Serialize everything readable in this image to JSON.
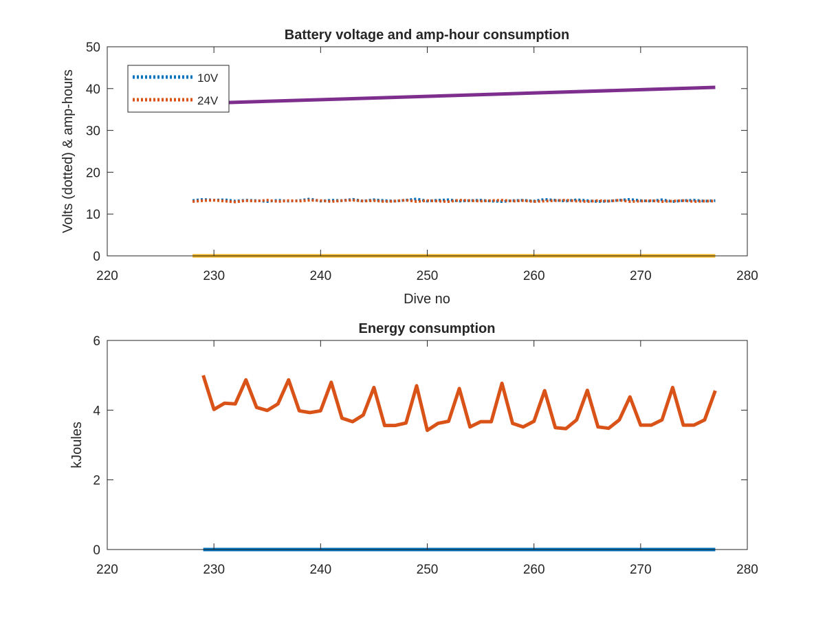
{
  "chart_data": [
    {
      "type": "line",
      "title": "Battery voltage and amp-hour consumption",
      "xlabel": "Dive no",
      "ylabel": "Volts (dotted) & amp-hours",
      "xlim": [
        220,
        280
      ],
      "ylim": [
        0,
        50
      ],
      "xticks": [
        "220",
        "230",
        "240",
        "250",
        "260",
        "270",
        "280"
      ],
      "yticks": [
        "0",
        "10",
        "20",
        "30",
        "40",
        "50"
      ],
      "legend_position": "top-left",
      "grid": false,
      "series": [
        {
          "name": "10V",
          "style": "dotted",
          "color": "#0072BD",
          "x": [
            228,
            229,
            230,
            231,
            232,
            233,
            234,
            235,
            236,
            237,
            238,
            239,
            240,
            241,
            242,
            243,
            244,
            245,
            246,
            247,
            248,
            249,
            250,
            251,
            252,
            253,
            254,
            255,
            256,
            257,
            258,
            259,
            260,
            261,
            262,
            263,
            264,
            265,
            266,
            267,
            268,
            269,
            270,
            271,
            272,
            273,
            274,
            275,
            276,
            277
          ],
          "y": [
            13.2,
            13.5,
            13.3,
            13.4,
            13.1,
            13.3,
            13.2,
            13.0,
            13.3,
            13.1,
            13.2,
            13.6,
            13.1,
            13.3,
            13.2,
            13.5,
            13.1,
            13.4,
            13.2,
            13.1,
            13.3,
            13.6,
            13.1,
            13.3,
            13.4,
            13.1,
            13.2,
            13.3,
            13.1,
            13.0,
            13.2,
            13.3,
            13.1,
            13.5,
            13.3,
            13.1,
            13.4,
            13.2,
            13.0,
            13.1,
            13.3,
            13.5,
            13.2,
            13.1,
            13.4,
            13.0,
            13.2,
            13.3,
            13.1,
            13.2
          ]
        },
        {
          "name": "24V",
          "style": "dotted",
          "color": "#D95319",
          "x": [
            228,
            229,
            230,
            231,
            232,
            233,
            234,
            235,
            236,
            237,
            238,
            239,
            240,
            241,
            242,
            243,
            244,
            245,
            246,
            247,
            248,
            249,
            250,
            251,
            252,
            253,
            254,
            255,
            256,
            257,
            258,
            259,
            260,
            261,
            262,
            263,
            264,
            265,
            266,
            267,
            268,
            269,
            270,
            271,
            272,
            273,
            274,
            275,
            276,
            277
          ],
          "y": [
            13.0,
            13.2,
            13.3,
            13.1,
            12.9,
            13.2,
            13.1,
            13.3,
            13.0,
            13.2,
            13.1,
            13.3,
            13.2,
            13.0,
            13.2,
            13.3,
            13.1,
            13.2,
            13.0,
            13.1,
            13.3,
            13.0,
            13.2,
            13.1,
            13.0,
            13.3,
            13.2,
            13.1,
            13.2,
            13.3,
            13.1,
            13.2,
            13.0,
            13.1,
            13.2,
            13.3,
            13.1,
            13.0,
            13.2,
            13.1,
            13.3,
            13.0,
            13.1,
            13.2,
            13.0,
            13.1,
            13.2,
            13.0,
            13.1,
            13.1
          ]
        },
        {
          "style": "solid",
          "color": "#7E2F8E",
          "x": [
            228,
            277
          ],
          "y": [
            36.4,
            40.3
          ]
        },
        {
          "style": "solid",
          "color": "#EDB120",
          "x": [
            228,
            277
          ],
          "y": [
            0,
            0
          ]
        }
      ]
    },
    {
      "type": "line",
      "title": "Energy consumption",
      "xlabel": "",
      "ylabel": "kJoules",
      "xlim": [
        220,
        280
      ],
      "ylim": [
        0,
        6
      ],
      "xticks": [
        "220",
        "230",
        "240",
        "250",
        "260",
        "270",
        "280"
      ],
      "yticks": [
        "0",
        "2",
        "4",
        "6"
      ],
      "grid": false,
      "series": [
        {
          "style": "solid",
          "color": "#D95319",
          "x": [
            229,
            230,
            231,
            232,
            233,
            234,
            235,
            236,
            237,
            238,
            239,
            240,
            241,
            242,
            243,
            244,
            245,
            246,
            247,
            248,
            249,
            250,
            251,
            252,
            253,
            254,
            255,
            256,
            257,
            258,
            259,
            260,
            261,
            262,
            263,
            264,
            265,
            266,
            267,
            268,
            269,
            270,
            271,
            272,
            273,
            274,
            275,
            276,
            277
          ],
          "y": [
            5.0,
            4.02,
            4.2,
            4.18,
            4.87,
            4.08,
            3.99,
            4.18,
            4.87,
            3.98,
            3.93,
            3.98,
            4.8,
            3.77,
            3.67,
            3.86,
            4.65,
            3.56,
            3.56,
            3.63,
            4.7,
            3.42,
            3.62,
            3.68,
            4.62,
            3.52,
            3.67,
            3.67,
            4.77,
            3.62,
            3.52,
            3.68,
            4.56,
            3.5,
            3.47,
            3.72,
            4.57,
            3.52,
            3.48,
            3.72,
            4.38,
            3.57,
            3.57,
            3.72,
            4.65,
            3.57,
            3.57,
            3.72,
            4.56
          ]
        },
        {
          "style": "solid",
          "color": "#0072BD",
          "x": [
            229,
            277
          ],
          "y": [
            0,
            0
          ]
        }
      ]
    }
  ]
}
